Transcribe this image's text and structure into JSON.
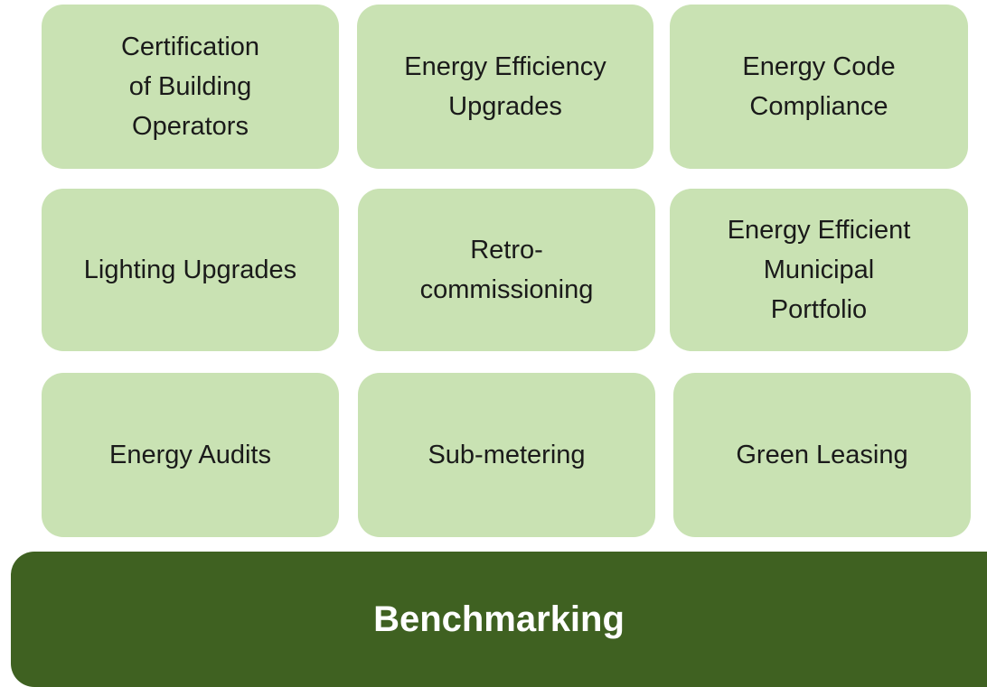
{
  "nodes": [
    {
      "lines": [
        "Certification",
        "of Building",
        "Operators"
      ]
    },
    {
      "lines": [
        "Energy Efficiency",
        "Upgrades"
      ]
    },
    {
      "lines": [
        "Energy Code",
        "Compliance"
      ]
    },
    {
      "lines": [
        "Lighting Upgrades"
      ]
    },
    {
      "lines": [
        "Retro-",
        "commissioning"
      ]
    },
    {
      "lines": [
        "Energy Efficient",
        "Municipal",
        "Portfolio"
      ]
    },
    {
      "lines": [
        "Energy Audits"
      ]
    },
    {
      "lines": [
        "Sub-metering"
      ]
    },
    {
      "lines": [
        "Green Leasing"
      ]
    }
  ],
  "foundation": {
    "label": "Benchmarking"
  }
}
